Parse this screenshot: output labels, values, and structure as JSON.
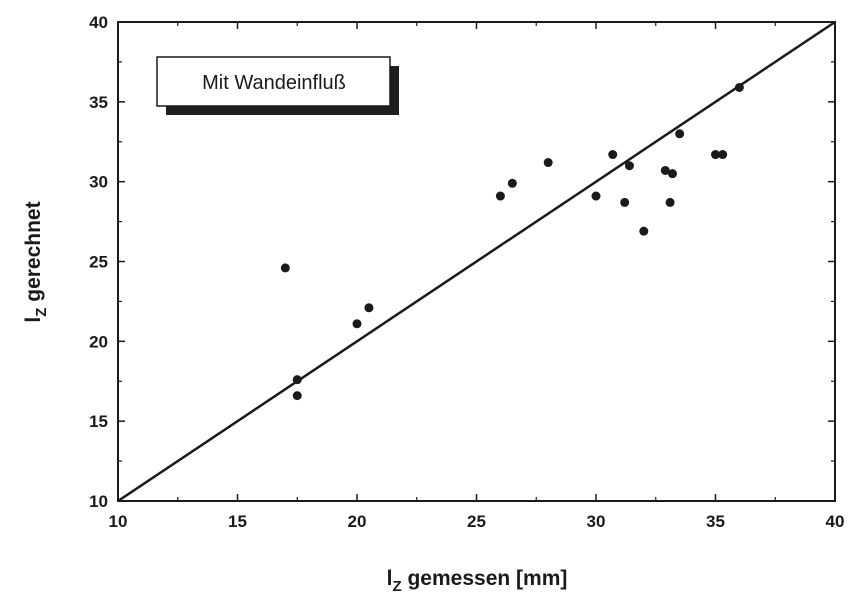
{
  "chart_data": {
    "type": "scatter",
    "title": "",
    "xlabel_main": "l",
    "xlabel_sub": "Z",
    "xlabel_rest": " gemessen [mm]",
    "ylabel_main": "l",
    "ylabel_sub": "Z",
    "ylabel_rest": " gerechnet",
    "xlim": [
      10,
      40
    ],
    "ylim": [
      10,
      40
    ],
    "xticks": [
      10,
      15,
      20,
      25,
      30,
      35,
      40
    ],
    "yticks": [
      10,
      15,
      20,
      25,
      30,
      35,
      40
    ],
    "annotation": "Mit Wandeinfluß",
    "reference_line": {
      "from": [
        10,
        10
      ],
      "to": [
        40,
        40
      ]
    },
    "grid": false,
    "series": [
      {
        "points": [
          [
            17.0,
            24.6
          ],
          [
            17.5,
            17.6
          ],
          [
            17.5,
            16.6
          ],
          [
            20.0,
            21.1
          ],
          [
            20.5,
            22.1
          ],
          [
            26.0,
            29.1
          ],
          [
            26.5,
            29.9
          ],
          [
            28.0,
            31.2
          ],
          [
            30.0,
            29.1
          ],
          [
            30.7,
            31.7
          ],
          [
            31.2,
            28.7
          ],
          [
            31.4,
            31.0
          ],
          [
            32.0,
            26.9
          ],
          [
            32.9,
            30.7
          ],
          [
            33.1,
            28.7
          ],
          [
            33.2,
            30.5
          ],
          [
            33.5,
            33.0
          ],
          [
            35.0,
            31.7
          ],
          [
            35.3,
            31.7
          ],
          [
            36.0,
            35.9
          ]
        ]
      }
    ],
    "colors": {
      "ink": "#1a1a1a",
      "background": "#ffffff"
    }
  }
}
